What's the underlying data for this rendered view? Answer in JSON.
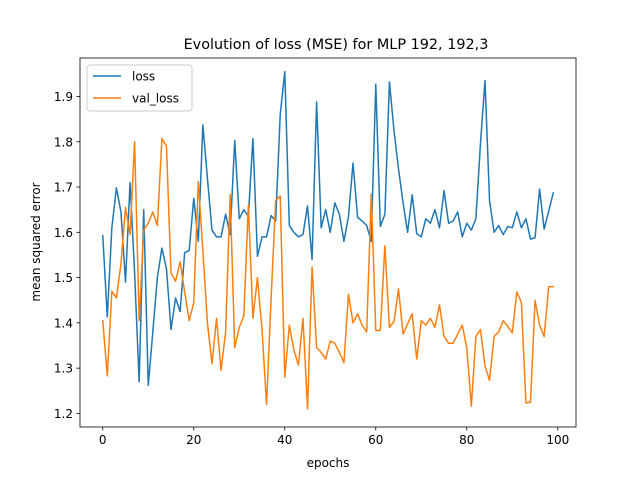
{
  "chart_data": {
    "type": "line",
    "title": "Evolution of loss (MSE) for MLP 192, 192,3",
    "xlabel": "epochs",
    "ylabel": "mean squared error",
    "xlim": [
      -5,
      104
    ],
    "ylim": [
      1.17,
      1.985
    ],
    "xticks": [
      0,
      20,
      40,
      60,
      80,
      100
    ],
    "yticks": [
      1.2,
      1.3,
      1.4,
      1.5,
      1.6,
      1.7,
      1.8,
      1.9
    ],
    "ytick_labels": [
      "1.2",
      "1.3",
      "1.4",
      "1.5",
      "1.6",
      "1.7",
      "1.8",
      "1.9"
    ],
    "grid": false,
    "legend_position": "upper-left",
    "x": [
      0,
      1,
      2,
      3,
      4,
      5,
      6,
      7,
      8,
      9,
      10,
      11,
      12,
      13,
      14,
      15,
      16,
      17,
      18,
      19,
      20,
      21,
      22,
      23,
      24,
      25,
      26,
      27,
      28,
      29,
      30,
      31,
      32,
      33,
      34,
      35,
      36,
      37,
      38,
      39,
      40,
      41,
      42,
      43,
      44,
      45,
      46,
      47,
      48,
      49,
      50,
      51,
      52,
      53,
      54,
      55,
      56,
      57,
      58,
      59,
      60,
      61,
      62,
      63,
      64,
      65,
      66,
      67,
      68,
      69,
      70,
      71,
      72,
      73,
      74,
      75,
      76,
      77,
      78,
      79,
      80,
      81,
      82,
      83,
      84,
      85,
      86,
      87,
      88,
      89,
      90,
      91,
      92,
      93,
      94,
      95,
      96,
      97,
      98,
      99
    ],
    "series": [
      {
        "name": "loss",
        "color": "#1f77b4",
        "values": [
          1.593,
          1.413,
          1.61,
          1.698,
          1.645,
          1.49,
          1.71,
          1.51,
          1.27,
          1.65,
          1.262,
          1.38,
          1.5,
          1.565,
          1.52,
          1.385,
          1.455,
          1.425,
          1.555,
          1.56,
          1.675,
          1.58,
          1.837,
          1.72,
          1.605,
          1.59,
          1.59,
          1.64,
          1.595,
          1.803,
          1.63,
          1.65,
          1.635,
          1.807,
          1.547,
          1.59,
          1.59,
          1.637,
          1.625,
          1.86,
          1.955,
          1.615,
          1.6,
          1.59,
          1.595,
          1.658,
          1.54,
          1.888,
          1.61,
          1.65,
          1.6,
          1.665,
          1.64,
          1.58,
          1.635,
          1.753,
          1.633,
          1.625,
          1.615,
          1.58,
          1.927,
          1.613,
          1.64,
          1.932,
          1.825,
          1.74,
          1.665,
          1.6,
          1.683,
          1.597,
          1.59,
          1.63,
          1.62,
          1.65,
          1.61,
          1.692,
          1.62,
          1.625,
          1.645,
          1.59,
          1.62,
          1.605,
          1.63,
          1.795,
          1.935,
          1.67,
          1.6,
          1.615,
          1.595,
          1.613,
          1.61,
          1.645,
          1.61,
          1.63,
          1.585,
          1.588,
          1.695,
          1.607,
          1.647,
          1.687
        ]
      },
      {
        "name": "val_loss",
        "color": "#ff7f0e",
        "values": [
          1.405,
          1.283,
          1.47,
          1.455,
          1.53,
          1.655,
          1.595,
          1.8,
          1.405,
          1.605,
          1.62,
          1.645,
          1.615,
          1.807,
          1.79,
          1.51,
          1.492,
          1.535,
          1.468,
          1.405,
          1.445,
          1.712,
          1.56,
          1.4,
          1.31,
          1.41,
          1.295,
          1.38,
          1.683,
          1.345,
          1.39,
          1.415,
          1.66,
          1.41,
          1.5,
          1.385,
          1.22,
          1.455,
          1.67,
          1.68,
          1.28,
          1.395,
          1.34,
          1.307,
          1.41,
          1.21,
          1.523,
          1.345,
          1.335,
          1.32,
          1.36,
          1.355,
          1.335,
          1.312,
          1.463,
          1.4,
          1.42,
          1.395,
          1.38,
          1.685,
          1.383,
          1.383,
          1.57,
          1.39,
          1.403,
          1.475,
          1.375,
          1.398,
          1.42,
          1.32,
          1.405,
          1.395,
          1.41,
          1.39,
          1.44,
          1.37,
          1.355,
          1.355,
          1.375,
          1.395,
          1.345,
          1.216,
          1.37,
          1.385,
          1.305,
          1.273,
          1.37,
          1.38,
          1.405,
          1.392,
          1.378,
          1.468,
          1.445,
          1.223,
          1.225,
          1.45,
          1.395,
          1.37,
          1.48,
          1.48
        ]
      }
    ]
  }
}
